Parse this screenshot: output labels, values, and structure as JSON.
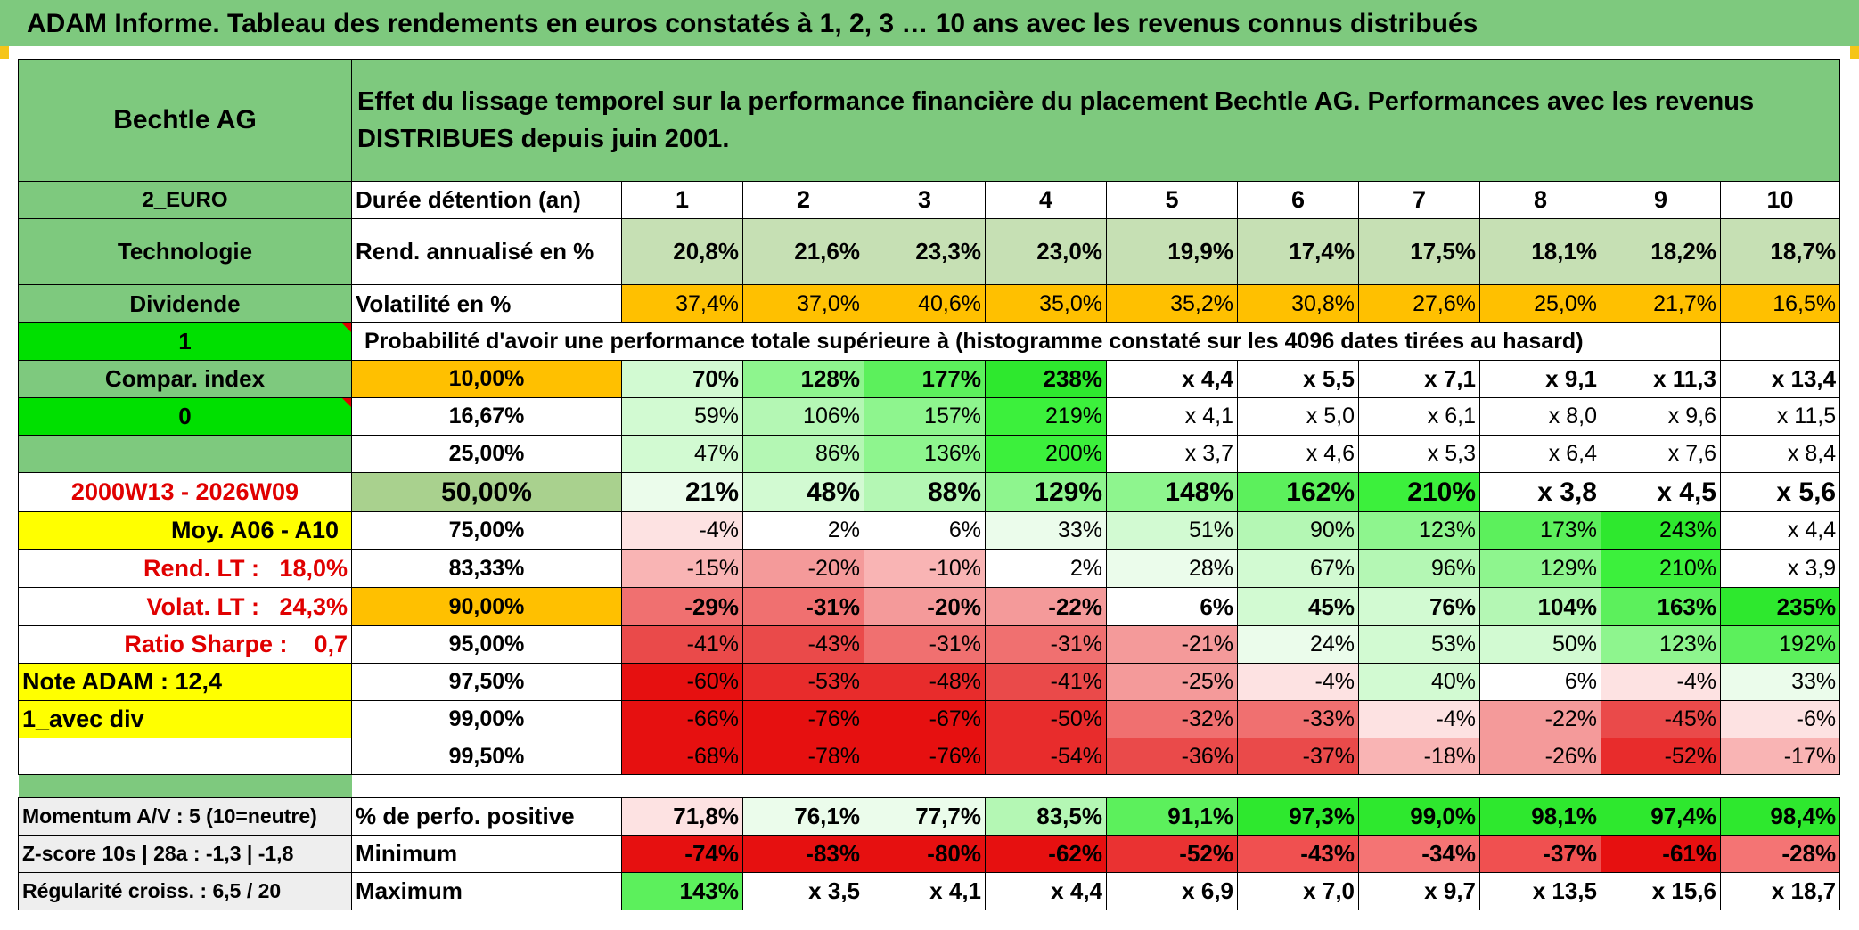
{
  "title": "ADAM Informe. Tableau des rendements en euros constatés à 1, 2, 3 … 10 ans avec les revenus connus distribués",
  "header": {
    "name": "Bechtle AG",
    "description": "Effet du lissage temporel sur la performance financière du placement Bechtle AG. Performances avec les revenus DISTRIBUES depuis juin 2001."
  },
  "left_labels": {
    "currency": "2_EURO",
    "sector": "Technologie",
    "income": "Dividende",
    "flag1": "1",
    "compar": "Compar. index",
    "flag0": "0",
    "period": "2000W13 - 2026W09",
    "moy": "Moy. A06 - A10",
    "rend_lt": "Rend. LT :   18,0%",
    "volat_lt": "Volat. LT :   24,3%",
    "sharpe": "Ratio Sharpe :    0,7",
    "note": "Note ADAM : 12,4",
    "avec_div": "1_avec div",
    "momentum": "Momentum A/V : 5 (10=neutre)",
    "zscore": "Z-score 10s | 28a : -1,3 | -1,8",
    "regularite": "Régularité croiss. : 6,5 / 20"
  },
  "table": {
    "duration_label": "Durée détention (an)",
    "years": [
      "1",
      "2",
      "3",
      "4",
      "5",
      "6",
      "7",
      "8",
      "9",
      "10"
    ],
    "rend_label": "Rend. annualisé en %",
    "rend": [
      "20,8%",
      "21,6%",
      "23,3%",
      "23,0%",
      "19,9%",
      "17,4%",
      "17,5%",
      "18,1%",
      "18,2%",
      "18,7%"
    ],
    "vol_label": "Volatilité en %",
    "vol": [
      "37,4%",
      "37,0%",
      "40,6%",
      "35,0%",
      "35,2%",
      "30,8%",
      "27,6%",
      "25,0%",
      "21,7%",
      "16,5%"
    ],
    "prob_label": "Probabilité d'avoir une performance totale supérieure à (histogramme constaté sur les 4096 dates tirées au hasard)",
    "rows": [
      {
        "p": "10,00%",
        "v": [
          "70%",
          "128%",
          "177%",
          "238%",
          "x 4,4",
          "x 5,5",
          "x 7,1",
          "x 9,1",
          "x 11,3",
          "x 13,4"
        ]
      },
      {
        "p": "16,67%",
        "v": [
          "59%",
          "106%",
          "157%",
          "219%",
          "x 4,1",
          "x 5,0",
          "x 6,1",
          "x 8,0",
          "x 9,6",
          "x 11,5"
        ]
      },
      {
        "p": "25,00%",
        "v": [
          "47%",
          "86%",
          "136%",
          "200%",
          "x 3,7",
          "x 4,6",
          "x 5,3",
          "x 6,4",
          "x 7,6",
          "x 8,4"
        ]
      },
      {
        "p": "50,00%",
        "v": [
          "21%",
          "48%",
          "88%",
          "129%",
          "148%",
          "162%",
          "210%",
          "x 3,8",
          "x 4,5",
          "x 5,6"
        ]
      },
      {
        "p": "75,00%",
        "v": [
          "-4%",
          "2%",
          "6%",
          "33%",
          "51%",
          "90%",
          "123%",
          "173%",
          "243%",
          "x 4,4"
        ]
      },
      {
        "p": "83,33%",
        "v": [
          "-15%",
          "-20%",
          "-10%",
          "2%",
          "28%",
          "67%",
          "96%",
          "129%",
          "210%",
          "x 3,9"
        ]
      },
      {
        "p": "90,00%",
        "v": [
          "-29%",
          "-31%",
          "-20%",
          "-22%",
          "6%",
          "45%",
          "76%",
          "104%",
          "163%",
          "235%"
        ]
      },
      {
        "p": "95,00%",
        "v": [
          "-41%",
          "-43%",
          "-31%",
          "-31%",
          "-21%",
          "24%",
          "53%",
          "50%",
          "123%",
          "192%"
        ]
      },
      {
        "p": "97,50%",
        "v": [
          "-60%",
          "-53%",
          "-48%",
          "-41%",
          "-25%",
          "-4%",
          "40%",
          "6%",
          "-4%",
          "33%"
        ]
      },
      {
        "p": "99,00%",
        "v": [
          "-66%",
          "-76%",
          "-67%",
          "-50%",
          "-32%",
          "-33%",
          "-4%",
          "-22%",
          "-45%",
          "-6%"
        ]
      },
      {
        "p": "99,50%",
        "v": [
          "-68%",
          "-78%",
          "-76%",
          "-54%",
          "-36%",
          "-37%",
          "-18%",
          "-26%",
          "-52%",
          "-17%"
        ]
      }
    ],
    "pos_label": "% de perfo. positive",
    "pos": [
      "71,8%",
      "76,1%",
      "77,7%",
      "83,5%",
      "91,1%",
      "97,3%",
      "99,0%",
      "98,1%",
      "97,4%",
      "98,4%"
    ],
    "min_label": "Minimum",
    "min": [
      "-74%",
      "-83%",
      "-80%",
      "-62%",
      "-52%",
      "-43%",
      "-34%",
      "-37%",
      "-61%",
      "-28%"
    ],
    "max_label": "Maximum",
    "max": [
      "143%",
      "x 3,5",
      "x 4,1",
      "x 4,4",
      "x 6,9",
      "x 7,0",
      "x 9,7",
      "x 13,5",
      "x 15,6",
      "x 18,7"
    ]
  },
  "colors": {
    "header_green": "#7ec97e",
    "bright_green": "#00e000",
    "orange": "#ffc000",
    "yellow": "#ffff00",
    "red_text": "#e00000"
  }
}
